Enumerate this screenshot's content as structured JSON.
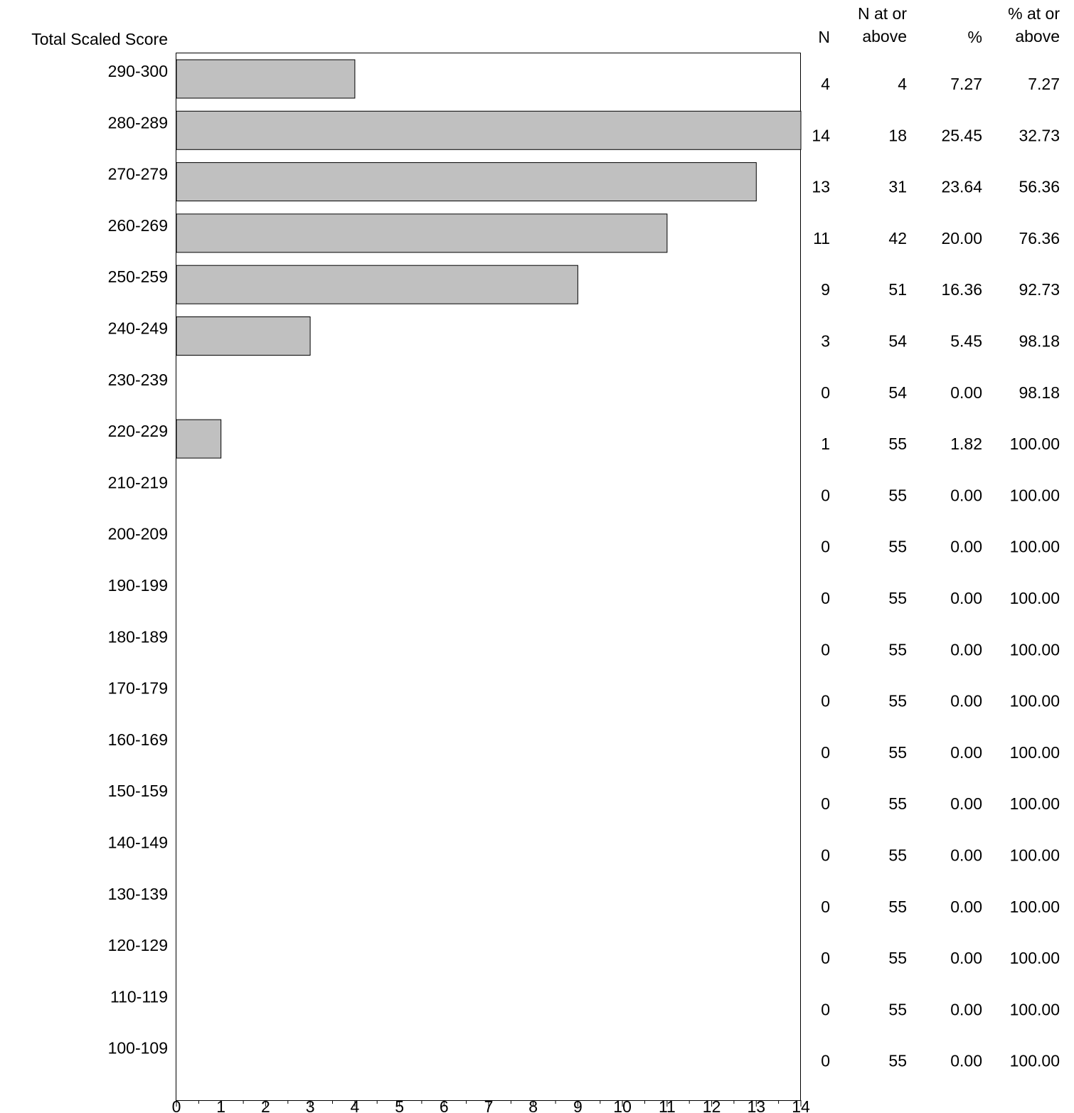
{
  "chart_data": {
    "type": "bar",
    "orientation": "horizontal",
    "ylabel": "Total Scaled Score",
    "categories": [
      "290-300",
      "280-289",
      "270-279",
      "260-269",
      "250-259",
      "240-249",
      "230-239",
      "220-229",
      "210-219",
      "200-209",
      "190-199",
      "180-189",
      "170-179",
      "160-169",
      "150-159",
      "140-149",
      "130-139",
      "120-129",
      "110-119",
      "100-109"
    ],
    "values": [
      4,
      14,
      13,
      11,
      9,
      3,
      0,
      1,
      0,
      0,
      0,
      0,
      0,
      0,
      0,
      0,
      0,
      0,
      0,
      0
    ],
    "xlim": [
      0,
      14
    ],
    "x_ticks": [
      "0",
      "1",
      "2",
      "3",
      "4",
      "5",
      "6",
      "7",
      "8",
      "9",
      "10",
      "11",
      "12",
      "13",
      "14"
    ],
    "bar_color": "#c0c0c0",
    "table": {
      "headers": [
        [
          "N"
        ],
        [
          "N at or",
          "above"
        ],
        [
          "%"
        ],
        [
          "% at or",
          "above"
        ]
      ],
      "rows": [
        [
          "4",
          "4",
          "7.27",
          "7.27"
        ],
        [
          "14",
          "18",
          "25.45",
          "32.73"
        ],
        [
          "13",
          "31",
          "23.64",
          "56.36"
        ],
        [
          "11",
          "42",
          "20.00",
          "76.36"
        ],
        [
          "9",
          "51",
          "16.36",
          "92.73"
        ],
        [
          "3",
          "54",
          "5.45",
          "98.18"
        ],
        [
          "0",
          "54",
          "0.00",
          "98.18"
        ],
        [
          "1",
          "55",
          "1.82",
          "100.00"
        ],
        [
          "0",
          "55",
          "0.00",
          "100.00"
        ],
        [
          "0",
          "55",
          "0.00",
          "100.00"
        ],
        [
          "0",
          "55",
          "0.00",
          "100.00"
        ],
        [
          "0",
          "55",
          "0.00",
          "100.00"
        ],
        [
          "0",
          "55",
          "0.00",
          "100.00"
        ],
        [
          "0",
          "55",
          "0.00",
          "100.00"
        ],
        [
          "0",
          "55",
          "0.00",
          "100.00"
        ],
        [
          "0",
          "55",
          "0.00",
          "100.00"
        ],
        [
          "0",
          "55",
          "0.00",
          "100.00"
        ],
        [
          "0",
          "55",
          "0.00",
          "100.00"
        ],
        [
          "0",
          "55",
          "0.00",
          "100.00"
        ],
        [
          "0",
          "55",
          "0.00",
          "100.00"
        ]
      ]
    }
  }
}
